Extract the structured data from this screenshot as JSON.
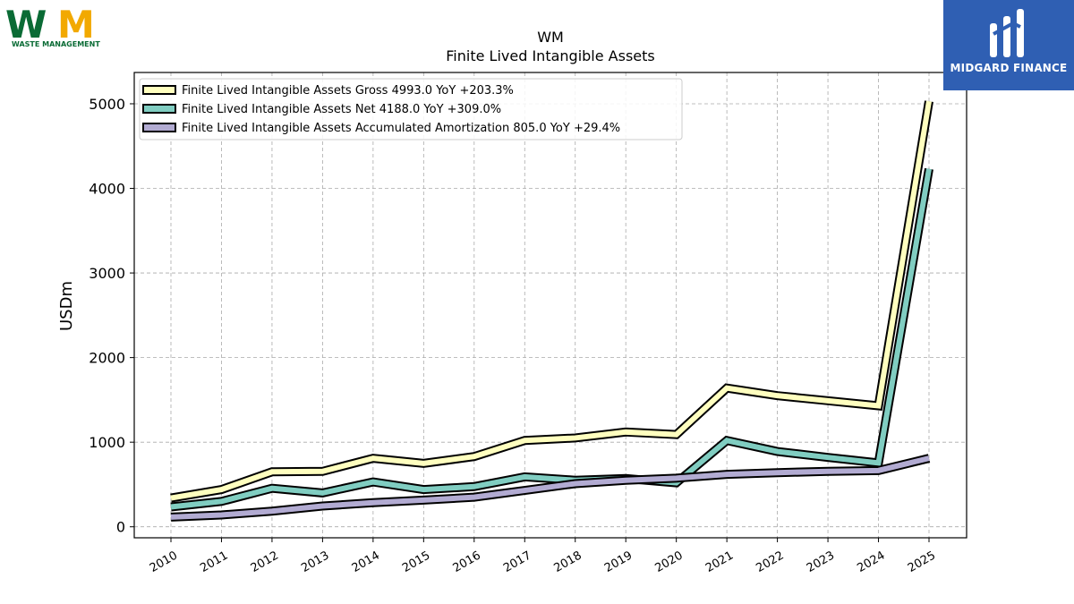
{
  "logos": {
    "left": {
      "big_letters": "WM",
      "caption": "WASTE MANAGEMENT"
    },
    "right": {
      "caption": "MIDGARD FINANCE"
    }
  },
  "chart_data": {
    "type": "line",
    "title": "WM",
    "subtitle": "Finite Lived Intangible Assets",
    "xlabel": "",
    "ylabel": "USDm",
    "categories": [
      "2010",
      "2011",
      "2012",
      "2013",
      "2014",
      "2015",
      "2016",
      "2017",
      "2018",
      "2019",
      "2020",
      "2021",
      "2022",
      "2023",
      "2024",
      "2025"
    ],
    "ylim": [
      -130,
      5370
    ],
    "yticks": [
      0,
      1000,
      2000,
      3000,
      4000,
      5000
    ],
    "grid": true,
    "legend_position": "top-left",
    "series": [
      {
        "name": "Finite Lived Intangible Assets Gross",
        "legend": "Finite Lived Intangible Assets Gross  4993.0 YoY +203.3%",
        "color": "#ffffbf",
        "values": [
          340,
          440,
          650,
          655,
          810,
          750,
          830,
          1020,
          1050,
          1120,
          1090,
          1640,
          1550,
          1490,
          1430,
          5030
        ]
      },
      {
        "name": "Finite Lived Intangible Assets Net",
        "legend": "Finite Lived Intangible Assets Net  4188.0 YoY +309.0%",
        "color": "#80cdc1",
        "values": [
          235,
          300,
          455,
          400,
          530,
          440,
          475,
          590,
          550,
          570,
          520,
          1020,
          890,
          820,
          755,
          4230
        ]
      },
      {
        "name": "Finite Lived Intangible Assets Accumulated Amortization",
        "legend": "Finite Lived Intangible Assets Accumulated Amortization  805.0 YoY +29.4%",
        "color": "#b2abd2",
        "values": [
          115,
          140,
          185,
          245,
          285,
          315,
          350,
          430,
          510,
          550,
          575,
          620,
          640,
          655,
          665,
          810
        ]
      }
    ]
  }
}
